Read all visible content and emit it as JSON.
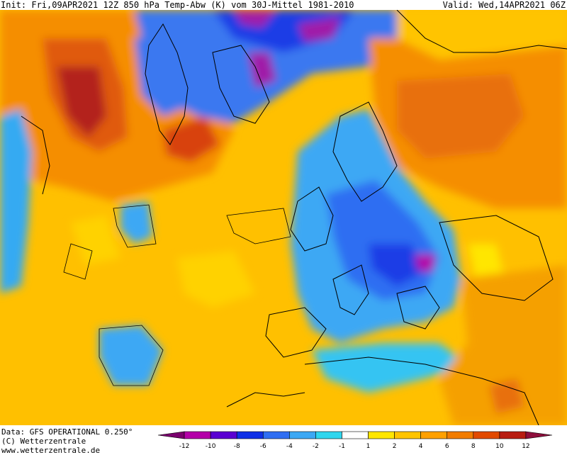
{
  "header": {
    "init": "Init: Fri,09APR2021 12Z 850 hPa Temp-Abw (K) vom 30J-Mittel 1981-2010",
    "valid": "Valid: Wed,14APR2021 06Z"
  },
  "footer": {
    "data_source": "Data: GFS OPERATIONAL 0.250°",
    "copyright": "(C) Wetterzentrale",
    "website": "www.wetterzentrale.de"
  },
  "legend": {
    "bins": [
      {
        "lo": -14,
        "hi": -12,
        "color": "#7a006e"
      },
      {
        "lo": -12,
        "hi": -10,
        "color": "#b400a8"
      },
      {
        "lo": -10,
        "hi": -8,
        "color": "#5a00d2"
      },
      {
        "lo": -8,
        "hi": -6,
        "color": "#0f2fe6"
      },
      {
        "lo": -6,
        "hi": -4,
        "color": "#2f6ef2"
      },
      {
        "lo": -4,
        "hi": -2,
        "color": "#3ca8f4"
      },
      {
        "lo": -2,
        "hi": -1,
        "color": "#2fd6ee"
      },
      {
        "lo": -1,
        "hi": 1,
        "color": "#ffffff"
      },
      {
        "lo": 1,
        "hi": 2,
        "color": "#ffe600"
      },
      {
        "lo": 2,
        "hi": 4,
        "color": "#ffc400"
      },
      {
        "lo": 4,
        "hi": 6,
        "color": "#ffa000"
      },
      {
        "lo": 6,
        "hi": 8,
        "color": "#f27c00"
      },
      {
        "lo": 8,
        "hi": 10,
        "color": "#e24a00"
      },
      {
        "lo": 10,
        "hi": 12,
        "color": "#b81d12"
      },
      {
        "lo": 12,
        "hi": 14,
        "color": "#8e0e3c"
      }
    ],
    "tick_labels": [
      "-12",
      "-10",
      "-8",
      "-6",
      "-4",
      "-2",
      "-1",
      "1",
      "2",
      "4",
      "6",
      "8",
      "10",
      "12"
    ]
  },
  "map": {
    "background_color": "#ffc000",
    "contour_label": "0",
    "coastline_color": "#000000"
  }
}
